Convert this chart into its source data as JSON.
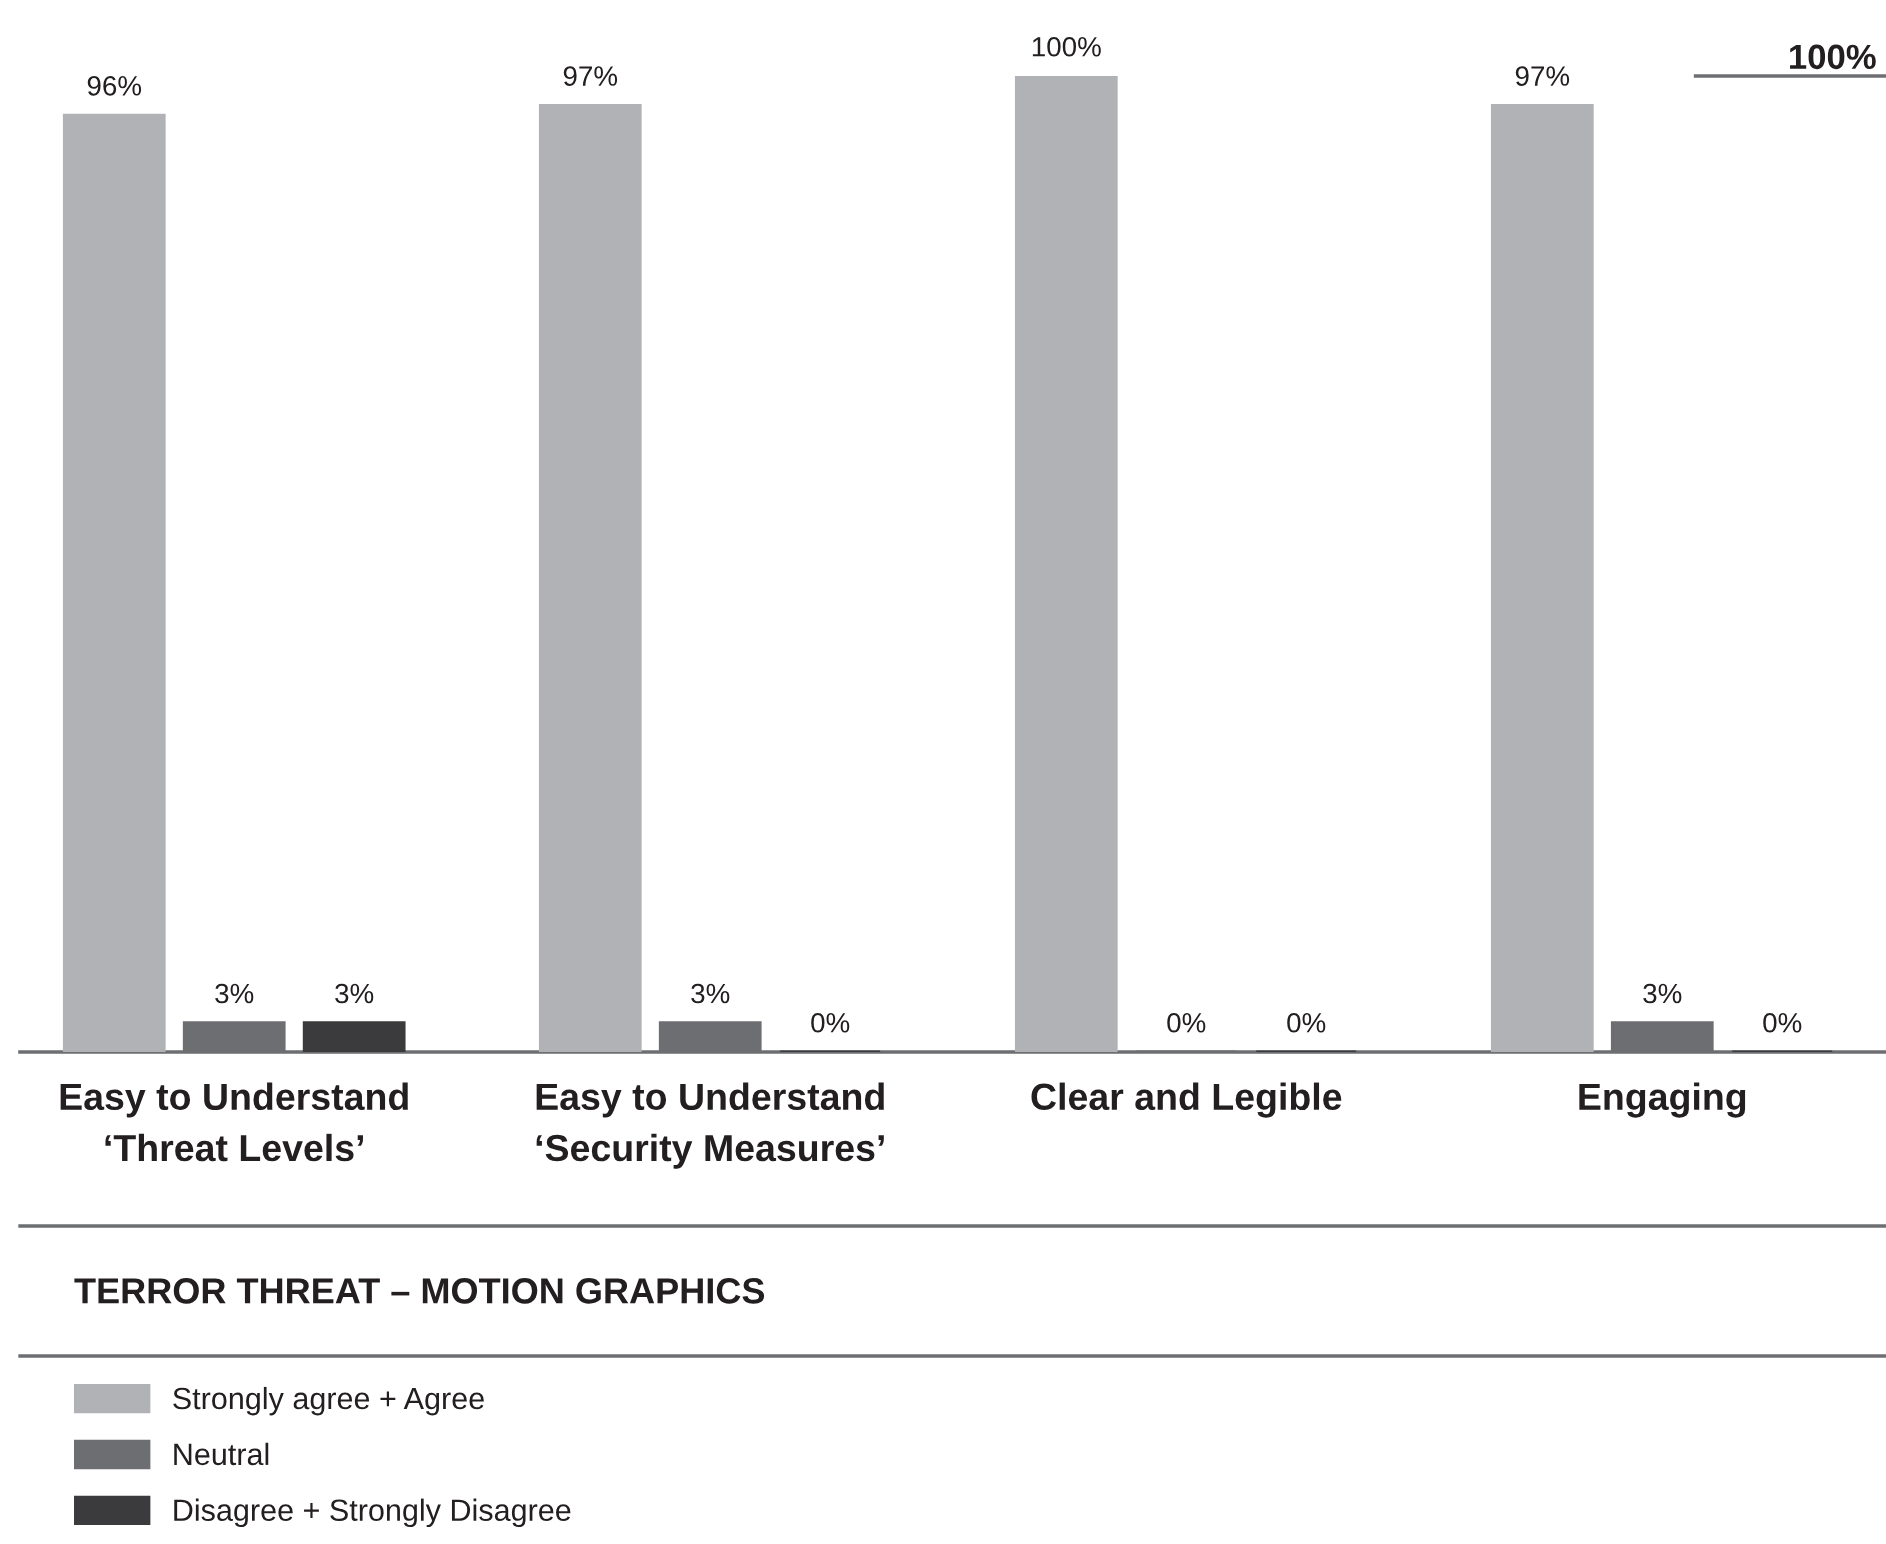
{
  "chart_data": {
    "type": "bar",
    "title": "TERROR THREAT – MOTION GRAPHICS",
    "categories": [
      "Easy to Understand\n‘Threat Levels’",
      "Easy to Understand\n‘Security Measures’",
      "Clear and Legible",
      "Engaging"
    ],
    "series": [
      {
        "name": "Strongly agree + Agree",
        "color": "#b1b2b5",
        "values": [
          96,
          97,
          100,
          97
        ],
        "value_labels": [
          "96%",
          "97%",
          "100%",
          "97%"
        ]
      },
      {
        "name": "Neutral",
        "color": "#6d6e71",
        "values": [
          3,
          3,
          0,
          3
        ],
        "value_labels": [
          "3%",
          "3%",
          "0%",
          "3%"
        ]
      },
      {
        "name": "Disagree + Strongly Disagree",
        "color": "#3b3b3d",
        "values": [
          3,
          0,
          0,
          0
        ],
        "value_labels": [
          "3%",
          "0%",
          "0%",
          "0%"
        ]
      }
    ],
    "ylim": [
      0,
      100
    ],
    "tick_labels": "x",
    "legend": "bottom left",
    "ref_lines": [
      {
        "axis": "y",
        "value": 100,
        "label": "100%",
        "color": "#6d6e71"
      }
    ]
  }
}
